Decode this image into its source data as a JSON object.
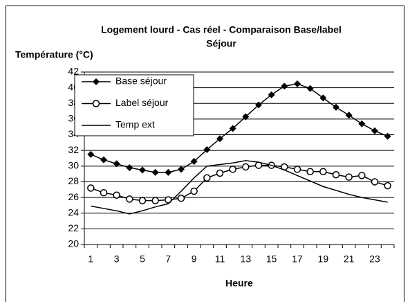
{
  "chart_data": {
    "type": "line",
    "title": [
      "Logement lourd - Cas réel - Comparaison Base/label",
      "Séjour"
    ],
    "y_label": "Température (°C)",
    "x_label": "Heure",
    "categories": [
      "1",
      null,
      "3",
      null,
      "5",
      null,
      "7",
      null,
      "9",
      null,
      "11",
      null,
      "13",
      null,
      "15",
      null,
      "17",
      null,
      "19",
      null,
      "21",
      null,
      "23",
      null
    ],
    "series": [
      {
        "name": "Base séjour",
        "color": "#000000",
        "marker": "diamond",
        "values": [
          31.5,
          30.8,
          30.3,
          29.8,
          29.5,
          29.2,
          29.2,
          29.6,
          30.6,
          32.1,
          33.5,
          34.8,
          36.3,
          37.8,
          39.1,
          40.2,
          40.5,
          39.9,
          38.7,
          37.5,
          36.5,
          35.4,
          34.5,
          33.8
        ]
      },
      {
        "name": "Label séjour",
        "color": "#000000",
        "marker": "circle",
        "values": [
          27.2,
          26.6,
          26.3,
          25.8,
          25.6,
          25.6,
          25.7,
          25.9,
          26.8,
          28.5,
          29.1,
          29.6,
          29.9,
          30.1,
          30.1,
          29.9,
          29.6,
          29.3,
          29.3,
          28.9,
          28.6,
          28.8,
          28.0,
          27.5
        ]
      },
      {
        "name": "Temp ext",
        "color": "#000000",
        "marker": "none",
        "values": [
          24.9,
          24.6,
          24.3,
          23.9,
          24.3,
          24.8,
          25.2,
          26.8,
          28.5,
          30.0,
          30.2,
          30.4,
          30.7,
          30.5,
          30.1,
          29.5,
          28.8,
          28.1,
          27.4,
          26.9,
          26.4,
          26.0,
          25.7,
          25.4
        ]
      }
    ],
    "ylim": [
      20,
      42
    ],
    "yticks": [
      20,
      22,
      24,
      26,
      28,
      30,
      32,
      34,
      36,
      38,
      40,
      42
    ],
    "grid": true,
    "legend": "top-left"
  }
}
